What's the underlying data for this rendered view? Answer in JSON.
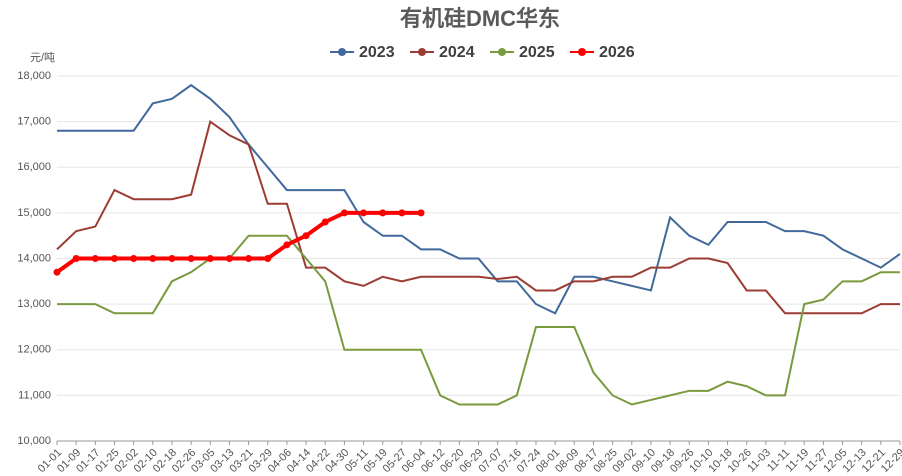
{
  "chart_data": {
    "type": "line",
    "title": "有机硅DMC华东",
    "y_label": "元/吨",
    "categories": [
      "01-01",
      "01-09",
      "01-17",
      "01-25",
      "02-02",
      "02-10",
      "02-18",
      "02-26",
      "03-05",
      "03-13",
      "03-21",
      "03-29",
      "04-06",
      "04-14",
      "04-22",
      "04-30",
      "05-11",
      "05-19",
      "05-27",
      "06-04",
      "06-12",
      "06-20",
      "06-29",
      "07-07",
      "07-16",
      "07-24",
      "08-01",
      "08-09",
      "08-17",
      "08-25",
      "09-02",
      "09-10",
      "09-18",
      "09-26",
      "10-10",
      "10-18",
      "10-26",
      "11-03",
      "11-11",
      "11-19",
      "11-27",
      "12-05",
      "12-13",
      "12-21",
      "12-29"
    ],
    "series": [
      {
        "name": "2023",
        "color": "#41699c",
        "values": [
          16800,
          16800,
          16800,
          16800,
          16800,
          17400,
          17500,
          17800,
          17500,
          17100,
          16500,
          16000,
          15500,
          15500,
          15500,
          15500,
          14800,
          14500,
          14500,
          14200,
          14200,
          14000,
          14000,
          13500,
          13500,
          13000,
          12800,
          13600,
          13600,
          13500,
          13400,
          13300,
          14900,
          14500,
          14300,
          14800,
          14800,
          14800,
          14600,
          14600,
          14500,
          14200,
          14000,
          13800,
          14100
        ]
      },
      {
        "name": "2024",
        "color": "#9c3c33",
        "values": [
          14200,
          14600,
          14700,
          15500,
          15300,
          15300,
          15300,
          15400,
          17000,
          16700,
          16500,
          15200,
          15200,
          13800,
          13800,
          13500,
          13400,
          13600,
          13500,
          13600,
          13600,
          13600,
          13600,
          13550,
          13600,
          13300,
          13300,
          13500,
          13500,
          13600,
          13600,
          13800,
          13800,
          14000,
          14000,
          13900,
          13300,
          13300,
          12800,
          12800,
          12800,
          12800,
          12800,
          13000,
          13000
        ]
      },
      {
        "name": "2025",
        "color": "#7a9a3e",
        "values": [
          13000,
          13000,
          13000,
          12800,
          12800,
          12800,
          13500,
          13700,
          14000,
          14000,
          14500,
          14500,
          14500,
          14000,
          13500,
          12000,
          12000,
          12000,
          12000,
          12000,
          11000,
          10800,
          10800,
          10800,
          11000,
          12500,
          12500,
          12500,
          11500,
          11000,
          10800,
          10900,
          11000,
          11100,
          11100,
          11300,
          11200,
          11000,
          11000,
          13000,
          13100,
          13500,
          13500,
          13700,
          13700
        ]
      },
      {
        "name": "2026",
        "color": "#ff0000",
        "values": [
          13700,
          14000,
          14000,
          14000,
          14000,
          14000,
          14000,
          14000,
          14000,
          14000,
          14000,
          14000,
          14300,
          14500,
          14800,
          15000,
          15000,
          15000,
          15000,
          15000,
          null,
          null,
          null,
          null,
          null,
          null,
          null,
          null,
          null,
          null,
          null,
          null,
          null,
          null,
          null,
          null,
          null,
          null,
          null,
          null,
          null,
          null,
          null,
          null,
          null
        ]
      }
    ],
    "ylim": [
      10000,
      18000
    ],
    "yticks": [
      {
        "value": 10000,
        "label": "10,000"
      },
      {
        "value": 11000,
        "label": "11,000"
      },
      {
        "value": 12000,
        "label": "12,000"
      },
      {
        "value": 13000,
        "label": "13,000"
      },
      {
        "value": 14000,
        "label": "14,000"
      },
      {
        "value": 15000,
        "label": "15,000"
      },
      {
        "value": 16000,
        "label": "16,000"
      },
      {
        "value": 17000,
        "label": "17,000"
      },
      {
        "value": 18000,
        "label": "18,000"
      }
    ],
    "grid": true
  }
}
